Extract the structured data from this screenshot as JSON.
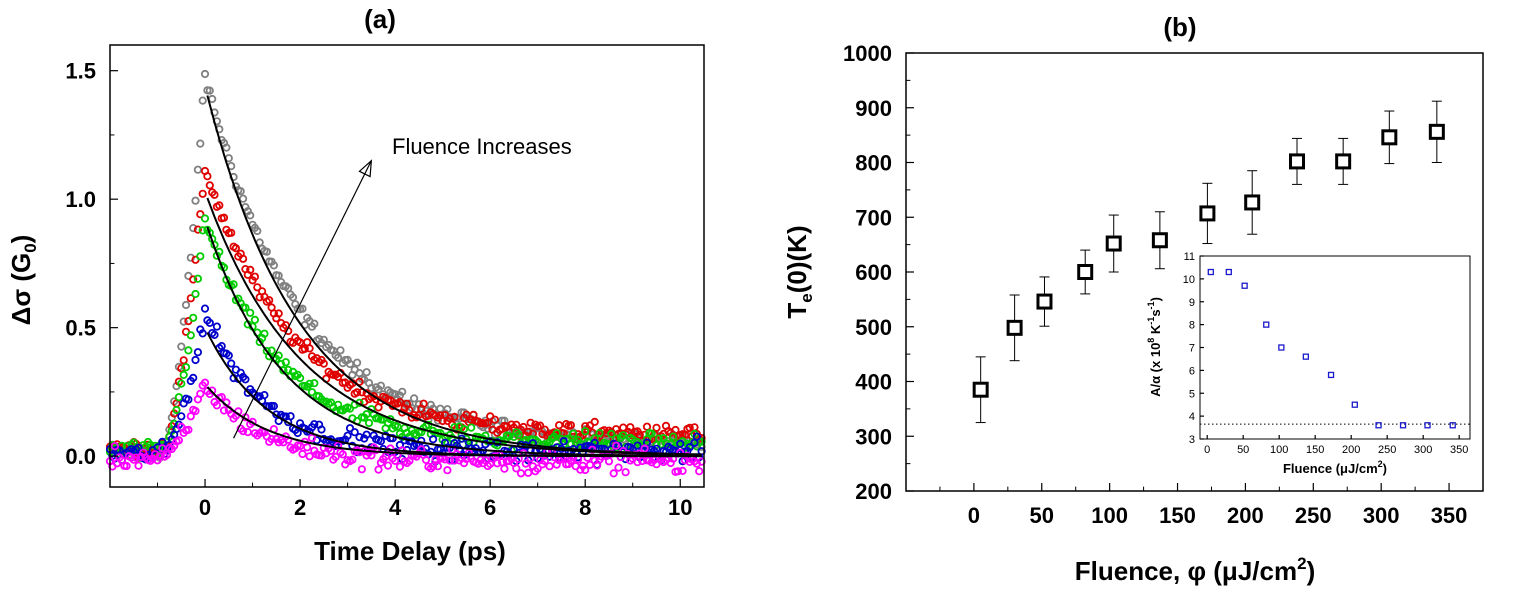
{
  "chart_data": [
    {
      "type": "scatter",
      "panel_label": "(a)",
      "xlabel": "Time Delay (ps)",
      "ylabel_main": "Δσ (G",
      "ylabel_sub": "0",
      "ylabel_end": ")",
      "xlim": [
        -2,
        10.5
      ],
      "ylim": [
        -0.12,
        1.6
      ],
      "xticks": [
        0,
        2,
        4,
        6,
        8,
        10
      ],
      "xtick_labels": [
        "0",
        "2",
        "4",
        "6",
        "8",
        "10"
      ],
      "yticks": [
        0.0,
        0.5,
        1.0,
        1.5
      ],
      "ytick_labels": [
        "0.0",
        "0.5",
        "1.0",
        "1.5"
      ],
      "annotation": "Fluence Increases",
      "arrow_from": [
        0.6,
        0.07
      ],
      "arrow_to": [
        3.5,
        1.15
      ],
      "series": [
        {
          "color": "#808080",
          "peak": 1.48,
          "tau": 1.95,
          "offset": 0.05,
          "fit_amp": 1.44,
          "fit_tau": 1.95
        },
        {
          "color": "#e00000",
          "peak": 1.12,
          "tau": 1.85,
          "offset": 0.08,
          "fit_amp": 1.03,
          "fit_tau": 2.0
        },
        {
          "color": "#00cc00",
          "peak": 0.92,
          "tau": 1.55,
          "offset": 0.05,
          "fit_amp": 0.92,
          "fit_tau": 1.6
        },
        {
          "color": "#0000cc",
          "peak": 0.56,
          "tau": 1.2,
          "offset": 0.02,
          "fit_amp": 0.5,
          "fit_tau": 1.3
        },
        {
          "color": "#ff00ff",
          "peak": 0.28,
          "tau": 1.2,
          "offset": -0.02,
          "fit_amp": 0.28,
          "fit_tau": 1.3
        }
      ]
    },
    {
      "type": "scatter",
      "panel_label": "(b)",
      "xlabel": "Fluence, φ (μJ/cm",
      "xlabel_sup": "2",
      "xlabel_end": ")",
      "ylabel_main": "T",
      "ylabel_sub": "e",
      "ylabel_end": "(0)(K)",
      "xlim": [
        -50,
        375
      ],
      "ylim": [
        200,
        1000
      ],
      "xticks": [
        0,
        50,
        100,
        150,
        200,
        250,
        300,
        350
      ],
      "xtick_labels": [
        "0",
        "50",
        "100",
        "150",
        "200",
        "250",
        "300",
        "350"
      ],
      "yticks": [
        200,
        300,
        400,
        500,
        600,
        700,
        800,
        900,
        1000
      ],
      "ytick_labels": [
        "200",
        "300",
        "400",
        "500",
        "600",
        "700",
        "800",
        "900",
        "1000"
      ],
      "points": [
        {
          "x": 5,
          "y": 385,
          "err": 60
        },
        {
          "x": 30,
          "y": 498,
          "err": 60
        },
        {
          "x": 52,
          "y": 546,
          "err": 45
        },
        {
          "x": 82,
          "y": 600,
          "err": 40
        },
        {
          "x": 103,
          "y": 652,
          "err": 52
        },
        {
          "x": 137,
          "y": 658,
          "err": 52
        },
        {
          "x": 172,
          "y": 707,
          "err": 55
        },
        {
          "x": 205,
          "y": 727,
          "err": 58
        },
        {
          "x": 238,
          "y": 802,
          "err": 42
        },
        {
          "x": 272,
          "y": 802,
          "err": 42
        },
        {
          "x": 306,
          "y": 846,
          "err": 48
        },
        {
          "x": 341,
          "y": 856,
          "err": 56
        }
      ]
    },
    {
      "type": "scatter",
      "panel": "inset",
      "xlabel": "Fluence (μJ/cm",
      "xlabel_sup": "2",
      "xlabel_end": ")",
      "ylabel": "A/α (x 10",
      "ylabel_sup1": "8",
      "ylabel_mid": " K",
      "ylabel_sup2": "-1",
      "ylabel_mid2": "s",
      "ylabel_sup3": "-1",
      "ylabel_end": ")",
      "xlim": [
        -10,
        365
      ],
      "ylim": [
        3,
        11
      ],
      "xticks": [
        0,
        50,
        100,
        150,
        200,
        250,
        300,
        350
      ],
      "xtick_labels": [
        "0",
        "50",
        "100",
        "150",
        "200",
        "250",
        "300",
        "350"
      ],
      "yticks": [
        3,
        4,
        5,
        6,
        7,
        8,
        9,
        10,
        11
      ],
      "ytick_labels": [
        "3",
        "4",
        "5",
        "6",
        "7",
        "8",
        "9",
        "10",
        "11"
      ],
      "reference_line": 3.65,
      "points": [
        {
          "x": 5,
          "y": 10.3
        },
        {
          "x": 30,
          "y": 10.3
        },
        {
          "x": 52,
          "y": 9.7
        },
        {
          "x": 82,
          "y": 8.0
        },
        {
          "x": 103,
          "y": 7.0
        },
        {
          "x": 137,
          "y": 6.6
        },
        {
          "x": 172,
          "y": 5.8
        },
        {
          "x": 205,
          "y": 4.5
        },
        {
          "x": 238,
          "y": 3.6
        },
        {
          "x": 272,
          "y": 3.6
        },
        {
          "x": 306,
          "y": 3.6
        },
        {
          "x": 341,
          "y": 3.6
        }
      ],
      "color": "#1a1acc"
    }
  ]
}
